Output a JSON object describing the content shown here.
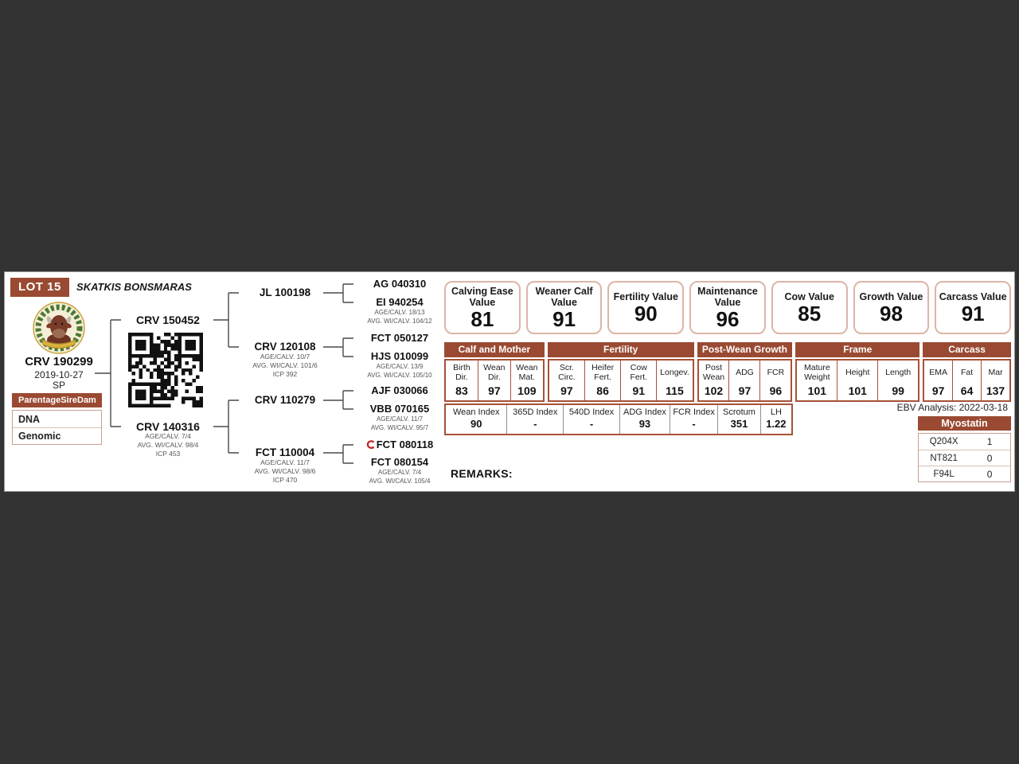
{
  "colors": {
    "accent_brown": "#9a4a32",
    "table_border": "#a65138",
    "value_box_border": "#dcb5a6",
    "cert_red": "#c42222",
    "page_bg": "#333333"
  },
  "header": {
    "lot": "LOT 15",
    "stud": "SKATKIS BONSMARAS"
  },
  "animal": {
    "id": "CRV 190299",
    "dob": "2019-10-27",
    "sex": "SP"
  },
  "parentage": {
    "words": [
      "Parentage",
      "Sire",
      "Dam"
    ],
    "rows": [
      "DNA",
      "Genomic"
    ]
  },
  "pedigree": {
    "sire": {
      "id": "CRV 150452"
    },
    "dam": {
      "id": "CRV 140316",
      "lines": [
        "AGE/CALV. 7/4",
        "AVG. WI/CALV. 98/4",
        "ICP 453"
      ]
    },
    "gen3": [
      {
        "id": "JL 100198"
      },
      {
        "id": "CRV 120108",
        "lines": [
          "AGE/CALV. 10/7",
          "AVG. WI/CALV. 101/6",
          "ICP 392"
        ]
      },
      {
        "id": "CRV 110279"
      },
      {
        "id": "FCT 110004",
        "lines": [
          "AGE/CALV. 11/7",
          "AVG. WI/CALV. 98/6",
          "ICP 470"
        ]
      }
    ],
    "gen4": [
      {
        "id": "AG 040310"
      },
      {
        "id": "EI 940254",
        "lines": [
          "AGE/CALV. 18/13",
          "AVG. WI/CALV. 104/12"
        ]
      },
      {
        "id": "FCT 050127"
      },
      {
        "id": "HJS 010099",
        "lines": [
          "AGE/CALV. 13/9",
          "AVG. WI/CALV. 105/10"
        ]
      },
      {
        "id": "AJF 030066"
      },
      {
        "id": "VBB 070165",
        "lines": [
          "AGE/CALV. 11/7",
          "AVG. WI/CALV. 95/7"
        ]
      },
      {
        "id": "FCT 080118",
        "icon": "certification-icon"
      },
      {
        "id": "FCT 080154",
        "lines": [
          "AGE/CALV. 7/4",
          "AVG. WI/CALV. 105/4"
        ]
      }
    ]
  },
  "value_boxes": [
    {
      "label": "Calving Ease Value",
      "value": "81"
    },
    {
      "label": "Weaner Calf Value",
      "value": "91"
    },
    {
      "label": "Fertility Value",
      "value": "90"
    },
    {
      "label": "Maintenance Value",
      "value": "96"
    },
    {
      "label": "Cow Value",
      "value": "85"
    },
    {
      "label": "Growth Value",
      "value": "98"
    },
    {
      "label": "Carcass Value",
      "value": "91"
    }
  ],
  "ebv": {
    "groups": [
      {
        "title": "Calf and Mother",
        "cols": [
          {
            "label": "Birth Dir.",
            "value": "83"
          },
          {
            "label": "Wean Dir.",
            "value": "97"
          },
          {
            "label": "Wean Mat.",
            "value": "109"
          }
        ]
      },
      {
        "title": "Fertility",
        "cols": [
          {
            "label": "Scr. Circ.",
            "value": "97"
          },
          {
            "label": "Heifer Fert.",
            "value": "86"
          },
          {
            "label": "Cow Fert.",
            "value": "91"
          },
          {
            "label": "Longev.",
            "value": "115"
          }
        ]
      },
      {
        "title": "Post-Wean Growth",
        "cols": [
          {
            "label": "Post Wean",
            "value": "102"
          },
          {
            "label": "ADG",
            "value": "97"
          },
          {
            "label": "FCR",
            "value": "96"
          }
        ]
      },
      {
        "title": "Frame",
        "cols": [
          {
            "label": "Mature Weight",
            "value": "101"
          },
          {
            "label": "Height",
            "value": "101"
          },
          {
            "label": "Length",
            "value": "99"
          }
        ]
      },
      {
        "title": "Carcass",
        "cols": [
          {
            "label": "EMA",
            "value": "97"
          },
          {
            "label": "Fat",
            "value": "64"
          },
          {
            "label": "Mar",
            "value": "137"
          }
        ]
      }
    ]
  },
  "index_table": [
    {
      "label": "Wean Index",
      "value": "90"
    },
    {
      "label": "365D Index",
      "value": "-"
    },
    {
      "label": "540D Index",
      "value": "-"
    },
    {
      "label": "ADG Index",
      "value": "93"
    },
    {
      "label": "FCR Index",
      "value": "-"
    },
    {
      "label": "Scrotum",
      "value": "351"
    },
    {
      "label": "LH",
      "value": "1.22"
    }
  ],
  "ebv_analysis": "EBV Analysis: 2022-03-18",
  "myostatin": {
    "title": "Myostatin",
    "rows": [
      {
        "label": "Q204X",
        "value": "1"
      },
      {
        "label": "NT821",
        "value": "0"
      },
      {
        "label": "F94L",
        "value": "0"
      }
    ]
  },
  "remarks_label": "REMARKS:"
}
